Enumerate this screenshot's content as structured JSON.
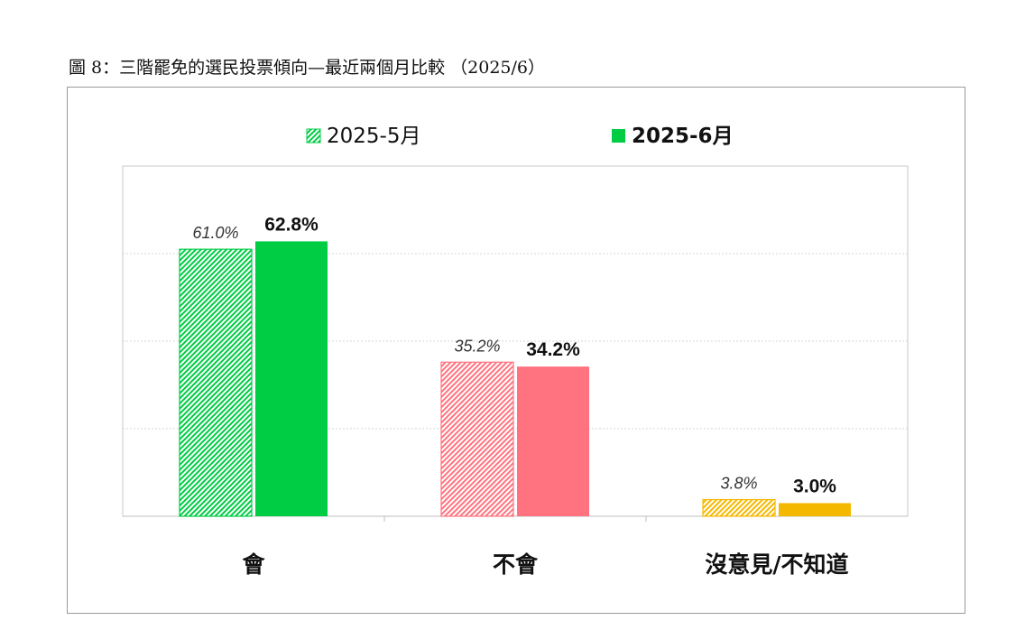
{
  "figure_title": "圖 8：三階罷免的選民投票傾向—最近兩個月比較 （2025/6）",
  "chart_data": {
    "type": "bar",
    "categories": [
      "會",
      "不會",
      "沒意見/不知道"
    ],
    "series": [
      {
        "name": "2025-5月",
        "values": [
          61.0,
          35.2,
          3.8
        ],
        "labels": [
          "61.0%",
          "35.2%",
          "3.8%"
        ],
        "style": "hatched"
      },
      {
        "name": "2025-6月",
        "values": [
          62.8,
          34.2,
          3.0
        ],
        "labels": [
          "62.8%",
          "34.2%",
          "3.0%"
        ],
        "style": "solid"
      }
    ],
    "category_colors": [
      "#00cc44",
      "#ff7380",
      "#f5b800"
    ],
    "legend_colors": [
      "#00cc44",
      "#00cc44"
    ],
    "ylim": [
      0,
      80
    ],
    "grid": true,
    "legend_position": "top-center"
  }
}
